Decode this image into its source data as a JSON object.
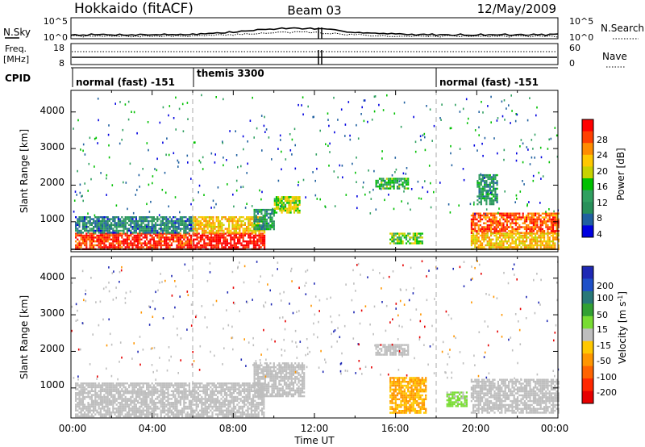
{
  "header": {
    "station": "Hokkaido (fitACF)",
    "beam": "Beam 03",
    "date": "12/May/2009"
  },
  "noise_panel": {
    "left_label": "N.Sky",
    "left_ticks": [
      "10^5",
      "10^0"
    ],
    "right_ticks": [
      "10^5",
      "10^0"
    ],
    "right_label": "N.Search"
  },
  "freq_panel": {
    "left_label_1": "Freq.",
    "left_label_2": "[MHz]",
    "left_ticks": [
      "18",
      "8"
    ],
    "right_ticks": [
      "60",
      "0"
    ],
    "right_label": "Nave"
  },
  "cpid": {
    "label": "CPID",
    "segments": [
      "normal (fast) -151",
      "themis 3300",
      "normal (fast) -151"
    ]
  },
  "axes": {
    "x_ticks": [
      "00:00",
      "04:00",
      "08:00",
      "12:00",
      "16:00",
      "20:00",
      "00:00"
    ],
    "x_label": "Time UT",
    "y_label": "Slant Range [km]",
    "y_ticks": [
      "1000",
      "2000",
      "3000",
      "4000"
    ]
  },
  "power_scale": {
    "label": "Power [dB]",
    "ticks": [
      "28",
      "24",
      "20",
      "16",
      "12",
      "8",
      "4"
    ],
    "colors": [
      "#ff0000",
      "#ff4000",
      "#ff8c00",
      "#ffc800",
      "#c8d200",
      "#00c000",
      "#30a060",
      "#28905a",
      "#2060a0",
      "#0000e0"
    ]
  },
  "velocity_scale": {
    "label": "Velocity [m s",
    "label_sup": "-1",
    "label_end": "]",
    "ticks": [
      "200",
      "100",
      "50",
      "15",
      "-15",
      "-50",
      "-100",
      "-200"
    ],
    "colors": [
      "#1e28b4",
      "#1e50c8",
      "#287878",
      "#32a032",
      "#78dc32",
      "#bebebe",
      "#ffc800",
      "#ff9600",
      "#ff6400",
      "#ff2800",
      "#e60000"
    ]
  },
  "chart_data": [
    {
      "type": "heatmap",
      "title": "Power",
      "x_range": [
        "00:00",
        "24:00"
      ],
      "y_range_km": [
        180,
        4590
      ],
      "value_range_db": [
        0,
        30
      ],
      "regions": [
        {
          "t": [
            0.2,
            6.0
          ],
          "range_km": [
            250,
            700
          ],
          "value": 28
        },
        {
          "t": [
            0.2,
            6.0
          ],
          "range_km": [
            700,
            1150
          ],
          "value": 6
        },
        {
          "t": [
            6.0,
            9.5
          ],
          "range_km": [
            250,
            700
          ],
          "value": 30
        },
        {
          "t": [
            6.0,
            9.5
          ],
          "range_km": [
            700,
            1150
          ],
          "value": 20
        },
        {
          "t": [
            9.0,
            10.0
          ],
          "range_km": [
            800,
            1350
          ],
          "value": 8
        },
        {
          "t": [
            10.0,
            11.3
          ],
          "range_km": [
            1250,
            1700
          ],
          "value": 16
        },
        {
          "t": [
            15.7,
            17.3
          ],
          "range_km": [
            400,
            700
          ],
          "value": 14
        },
        {
          "t": [
            15.0,
            16.6
          ],
          "range_km": [
            1900,
            2200
          ],
          "value": 12
        },
        {
          "t": [
            19.7,
            24.0
          ],
          "range_km": [
            700,
            1250
          ],
          "value": 26
        },
        {
          "t": [
            19.7,
            24.0
          ],
          "range_km": [
            250,
            700
          ],
          "value": 20
        },
        {
          "t": [
            20.0,
            21.0
          ],
          "range_km": [
            1500,
            2300
          ],
          "value": 8
        }
      ]
    },
    {
      "type": "heatmap",
      "title": "Velocity",
      "x_range": [
        "00:00",
        "24:00"
      ],
      "y_range_km": [
        180,
        4590
      ],
      "value_range_ms": [
        -200,
        200
      ],
      "regions": [
        {
          "t": [
            0.2,
            9.5
          ],
          "range_km": [
            250,
            1150
          ],
          "value": 0
        },
        {
          "t": [
            9.0,
            11.5
          ],
          "range_km": [
            800,
            1700
          ],
          "value": 0
        },
        {
          "t": [
            15.0,
            16.6
          ],
          "range_km": [
            1900,
            2200
          ],
          "value": 0
        },
        {
          "t": [
            15.7,
            17.5
          ],
          "range_km": [
            300,
            1300
          ],
          "value": -60
        },
        {
          "t": [
            19.7,
            24.0
          ],
          "range_km": [
            300,
            1250
          ],
          "value": 0
        },
        {
          "t": [
            18.5,
            19.5
          ],
          "range_km": [
            500,
            900
          ],
          "value": 30
        }
      ]
    }
  ]
}
